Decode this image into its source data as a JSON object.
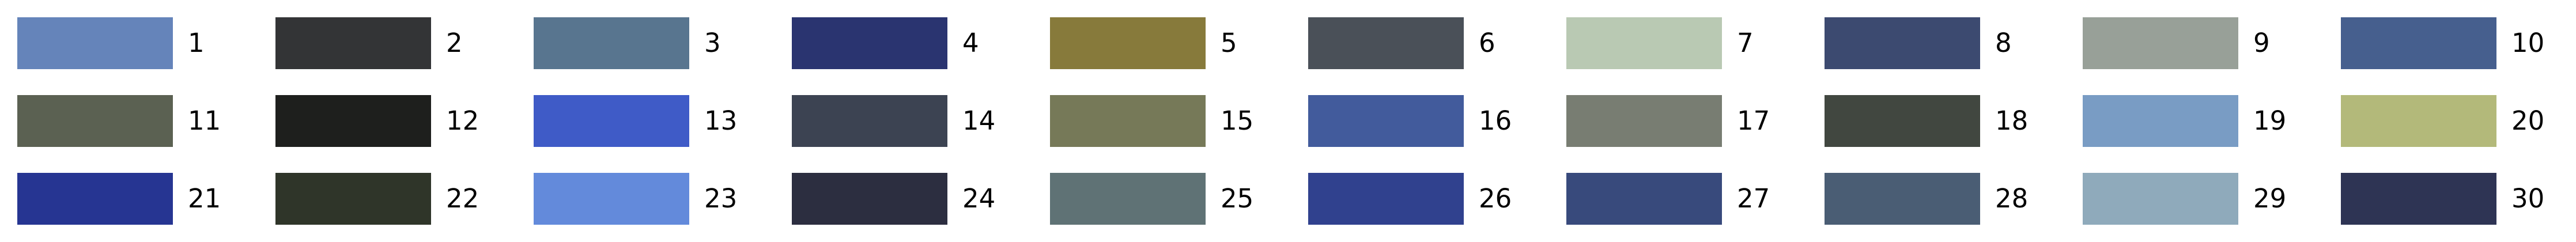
{
  "swatches": [
    {
      "label": "1",
      "color": "#6584BA"
    },
    {
      "label": "2",
      "color": "#333436"
    },
    {
      "label": "3",
      "color": "#58758F"
    },
    {
      "label": "4",
      "color": "#2A3470"
    },
    {
      "label": "5",
      "color": "#877A3B"
    },
    {
      "label": "6",
      "color": "#4A5058"
    },
    {
      "label": "7",
      "color": "#B9C9B3"
    },
    {
      "label": "8",
      "color": "#3C4A70"
    },
    {
      "label": "9",
      "color": "#98A098"
    },
    {
      "label": "10",
      "color": "#465F8E"
    },
    {
      "label": "11",
      "color": "#5B6152"
    },
    {
      "label": "12",
      "color": "#1E1F1D"
    },
    {
      "label": "13",
      "color": "#3F5BC7"
    },
    {
      "label": "14",
      "color": "#3C4352"
    },
    {
      "label": "15",
      "color": "#767958"
    },
    {
      "label": "16",
      "color": "#425B9C"
    },
    {
      "label": "17",
      "color": "#787D72"
    },
    {
      "label": "18",
      "color": "#414740"
    },
    {
      "label": "19",
      "color": "#799CC4"
    },
    {
      "label": "20",
      "color": "#B3B97A"
    },
    {
      "label": "21",
      "color": "#263592"
    },
    {
      "label": "22",
      "color": "#2F3529"
    },
    {
      "label": "23",
      "color": "#638ADB"
    },
    {
      "label": "24",
      "color": "#2C2E40"
    },
    {
      "label": "25",
      "color": "#5F7275"
    },
    {
      "label": "26",
      "color": "#30418E"
    },
    {
      "label": "27",
      "color": "#384A7C"
    },
    {
      "label": "28",
      "color": "#4A5D74"
    },
    {
      "label": "29",
      "color": "#8FAABB"
    },
    {
      "label": "30",
      "color": "#2E3454"
    }
  ]
}
